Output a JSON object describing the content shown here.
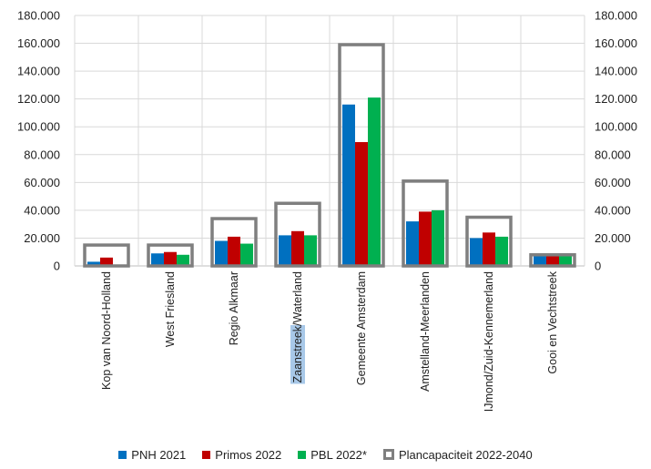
{
  "chart_data": {
    "type": "bar",
    "categories": [
      "Kop van Noord-Holland",
      "West Friesland",
      "Regio Alkmaar",
      "Zaanstreek/Waterland",
      "Gemeente Amsterdam",
      "Amstelland-Meerlanden",
      "IJmond/Zuid-Kennemerland",
      "Gooi en Vechtstreek"
    ],
    "series": [
      {
        "name": "PNH 2021",
        "color": "#0070c0",
        "values": [
          3000,
          9000,
          18000,
          22000,
          116000,
          32000,
          20000,
          7000
        ]
      },
      {
        "name": "Primos 2022",
        "color": "#c00000",
        "values": [
          6000,
          10000,
          21000,
          25000,
          89000,
          39000,
          24000,
          7000
        ]
      },
      {
        "name": "PBL 2022*",
        "color": "#00b050",
        "values": [
          0,
          8000,
          16000,
          22000,
          121000,
          40000,
          21000,
          9000
        ]
      },
      {
        "name": "Plancapaciteit 2022-2040",
        "color": "#7f7f7f",
        "style": "outline",
        "values": [
          15000,
          15000,
          34000,
          45000,
          159000,
          61000,
          35000,
          8000
        ]
      }
    ],
    "ylim": [
      0,
      180000
    ],
    "yticks": [
      "0",
      "20.000",
      "40.000",
      "60.000",
      "80.000",
      "100.000",
      "120.000",
      "140.000",
      "160.000",
      "180.000"
    ],
    "secondary_yticks": [
      "0",
      "20.000",
      "40.000",
      "60.000",
      "80.000",
      "100.000",
      "120.000",
      "140.000",
      "160.000",
      "180.000"
    ],
    "highlighted_label_part": "Zaanstreek",
    "grid": true,
    "legend_position": "bottom",
    "title": "",
    "xlabel": "",
    "ylabel": ""
  }
}
